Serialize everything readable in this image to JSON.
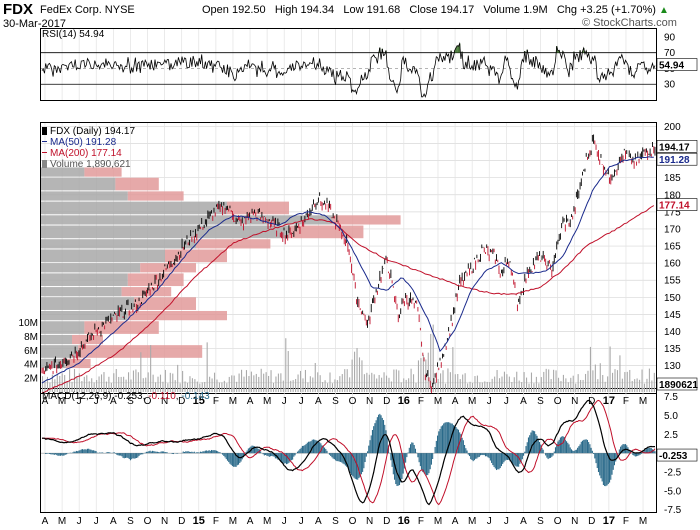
{
  "header": {
    "symbol": "FDX",
    "company": "FedEx Corp. NYSE",
    "date": "30-Mar-2017",
    "open_label": "Open",
    "open": "192.50",
    "high_label": "High",
    "high": "194.34",
    "low_label": "Low",
    "low": "191.68",
    "close_label": "Close",
    "close": "194.17",
    "volume_label": "Volume",
    "volume": "1.9M",
    "chg_label": "Chg",
    "chg": "+3.25 (+1.70%)",
    "chg_icon": "up-triangle-icon",
    "brand": "© StockCharts.com"
  },
  "colors": {
    "price": "#000000",
    "ma50": "#1a2a8c",
    "ma200": "#c0102a",
    "volume": "#aaaaaa",
    "vbp_up": "#e29a9a",
    "vbp_down": "#a8a8a8",
    "rsi_fill": "#4a7a3a",
    "macd_hist": "#2a6a8a"
  },
  "chart_data": [
    {
      "type": "line",
      "panel": "rsi",
      "label": "RSI(14) 54.94",
      "ylim": [
        10,
        100
      ],
      "ticks": [
        90,
        70,
        50,
        30
      ],
      "levels": [
        70,
        30
      ],
      "last_label": "54.94"
    },
    {
      "type": "line",
      "panel": "price",
      "title": "FDX (Daily) 194.17",
      "legend": [
        "FDX (Daily) 194.17",
        "MA(50) 191.28",
        "MA(200) 177.14",
        "Volume 1,890,621"
      ],
      "ylim": [
        122,
        201
      ],
      "yticks": [
        200,
        195,
        190,
        185,
        180,
        175,
        170,
        165,
        160,
        155,
        150,
        145,
        140,
        135,
        130,
        125
      ],
      "last_labels": {
        "close": "194.17",
        "ma50": "191.28",
        "ma200": "177.14"
      },
      "price_keypoints": [
        [
          0,
          128
        ],
        [
          5,
          131
        ],
        [
          10,
          135
        ],
        [
          15,
          141
        ],
        [
          20,
          145
        ],
        [
          25,
          148
        ],
        [
          30,
          155
        ],
        [
          35,
          162
        ],
        [
          40,
          169
        ],
        [
          45,
          175
        ],
        [
          48,
          177
        ],
        [
          52,
          171
        ],
        [
          55,
          175
        ],
        [
          60,
          172
        ],
        [
          64,
          168
        ],
        [
          68,
          172
        ],
        [
          72,
          179
        ],
        [
          75,
          176
        ],
        [
          80,
          165
        ],
        [
          82,
          150
        ],
        [
          85,
          142
        ],
        [
          88,
          155
        ],
        [
          90,
          161
        ],
        [
          93,
          145
        ],
        [
          95,
          150
        ],
        [
          98,
          147
        ],
        [
          100,
          128
        ],
        [
          102,
          124
        ],
        [
          105,
          135
        ],
        [
          107,
          143
        ],
        [
          109,
          154
        ],
        [
          112,
          158
        ],
        [
          115,
          164
        ],
        [
          118,
          162
        ],
        [
          120,
          157
        ],
        [
          122,
          162
        ],
        [
          124,
          148
        ],
        [
          127,
          158
        ],
        [
          130,
          162
        ],
        [
          133,
          158
        ],
        [
          136,
          172
        ],
        [
          138,
          172
        ],
        [
          140,
          180
        ],
        [
          142,
          190
        ],
        [
          144,
          196
        ],
        [
          146,
          190
        ],
        [
          148,
          185
        ],
        [
          150,
          188
        ],
        [
          152,
          192
        ],
        [
          155,
          189
        ],
        [
          157,
          192
        ],
        [
          160,
          194
        ]
      ],
      "ma50_keypoints": [
        [
          0,
          125
        ],
        [
          10,
          131
        ],
        [
          20,
          141
        ],
        [
          30,
          152
        ],
        [
          38,
          163
        ],
        [
          44,
          170
        ],
        [
          50,
          174
        ],
        [
          56,
          173
        ],
        [
          62,
          171
        ],
        [
          66,
          174
        ],
        [
          70,
          175
        ],
        [
          74,
          174
        ],
        [
          78,
          170
        ],
        [
          82,
          162
        ],
        [
          86,
          153
        ],
        [
          90,
          152
        ],
        [
          94,
          156
        ],
        [
          97,
          152
        ],
        [
          101,
          143
        ],
        [
          104,
          134
        ],
        [
          108,
          141
        ],
        [
          112,
          152
        ],
        [
          116,
          158
        ],
        [
          120,
          160
        ],
        [
          124,
          157
        ],
        [
          128,
          157
        ],
        [
          132,
          158
        ],
        [
          136,
          162
        ],
        [
          140,
          171
        ],
        [
          144,
          182
        ],
        [
          148,
          188
        ],
        [
          152,
          190
        ],
        [
          156,
          191
        ],
        [
          160,
          191
        ]
      ],
      "ma200_keypoints": [
        [
          0,
          122
        ],
        [
          10,
          127
        ],
        [
          20,
          134
        ],
        [
          30,
          144
        ],
        [
          40,
          156
        ],
        [
          50,
          166
        ],
        [
          60,
          170
        ],
        [
          70,
          173
        ],
        [
          76,
          172
        ],
        [
          82,
          166
        ],
        [
          90,
          161
        ],
        [
          100,
          157
        ],
        [
          110,
          153
        ],
        [
          118,
          151
        ],
        [
          124,
          151
        ],
        [
          130,
          153
        ],
        [
          136,
          158
        ],
        [
          142,
          165
        ],
        [
          150,
          170
        ],
        [
          160,
          177
        ]
      ],
      "volume_axis": [
        "10M",
        "8M",
        "6M",
        "4M",
        "2M"
      ],
      "volume_last_label": "1890621",
      "volume_by_price": [
        {
          "price_high": 188,
          "price_low": 185,
          "up": 0.06,
          "down": 0.07
        },
        {
          "price_high": 185,
          "price_low": 181,
          "up": 0.07,
          "down": 0.12
        },
        {
          "price_high": 181,
          "price_low": 178,
          "up": 0.09,
          "down": 0.14
        },
        {
          "price_high": 178,
          "price_low": 174,
          "up": 0.1,
          "down": 0.3
        },
        {
          "price_high": 174,
          "price_low": 171,
          "up": 0.11,
          "down": 0.47
        },
        {
          "price_high": 171,
          "price_low": 167,
          "up": 0.12,
          "down": 0.4
        },
        {
          "price_high": 167,
          "price_low": 164,
          "up": 0.12,
          "down": 0.25
        },
        {
          "price_high": 164,
          "price_low": 160,
          "up": 0.1,
          "down": 0.2
        },
        {
          "price_high": 160,
          "price_low": 157,
          "up": 0.09,
          "down": 0.16
        },
        {
          "price_high": 157,
          "price_low": 153,
          "up": 0.09,
          "down": 0.14
        },
        {
          "price_high": 153,
          "price_low": 150,
          "up": 0.08,
          "down": 0.13
        },
        {
          "price_high": 150,
          "price_low": 146,
          "up": 0.1,
          "down": 0.15
        },
        {
          "price_high": 146,
          "price_low": 143,
          "up": 0.16,
          "down": 0.14
        },
        {
          "price_high": 143,
          "price_low": 139,
          "up": 0.12,
          "down": 0.07
        },
        {
          "price_high": 139,
          "price_low": 136,
          "up": 0.05,
          "down": 0.05
        },
        {
          "price_high": 136,
          "price_low": 132,
          "up": 0.2,
          "down": 0.06
        },
        {
          "price_high": 132,
          "price_low": 129,
          "up": 0.04,
          "down": 0.04
        }
      ]
    },
    {
      "type": "line",
      "panel": "macd",
      "label": "MACD(12,26,9) -0.253, -0.110, -0.143",
      "macd": "-0.253",
      "signal": "-0.110",
      "histogram": "-0.143",
      "ylim": [
        -7.8,
        8.5
      ],
      "ticks": [
        "7.5",
        "5.0",
        "2.5",
        "0.0",
        "-2.5",
        "-5.0",
        "-7.5"
      ],
      "last_label": "-0.253"
    }
  ],
  "x_axis": {
    "labels": [
      "A",
      "M",
      "J",
      "J",
      "A",
      "S",
      "O",
      "N",
      "D",
      "15",
      "F",
      "M",
      "A",
      "M",
      "J",
      "J",
      "A",
      "S",
      "O",
      "N",
      "D",
      "16",
      "F",
      "M",
      "A",
      "M",
      "J",
      "J",
      "A",
      "S",
      "O",
      "N",
      "D",
      "17",
      "F",
      "M"
    ],
    "bold_labels": [
      "15",
      "16",
      "17"
    ]
  }
}
